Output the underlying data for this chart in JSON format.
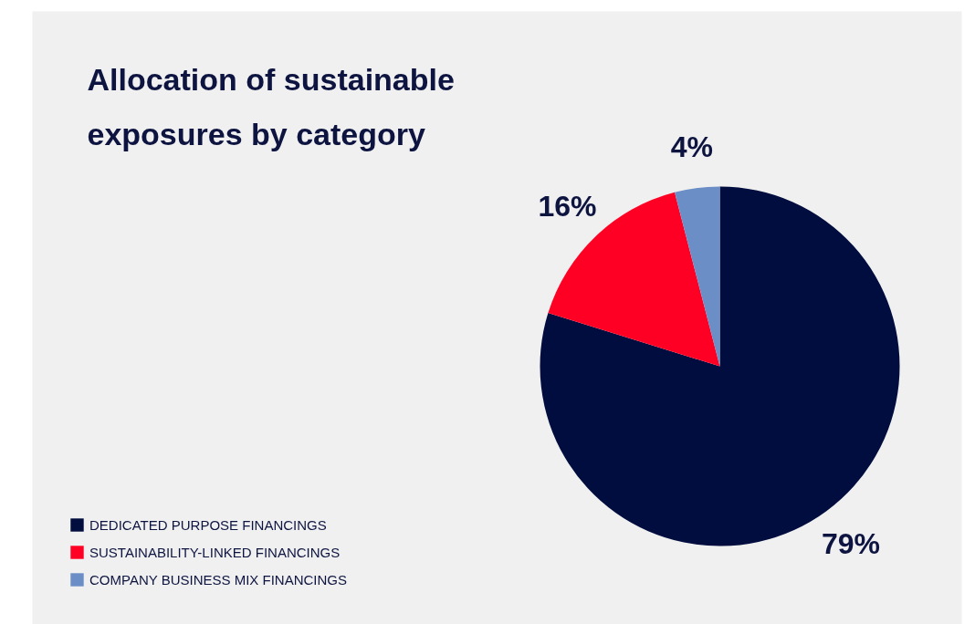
{
  "chart_data": {
    "type": "pie",
    "title": "Allocation of sustainable\nexposures by category",
    "categories": [
      "DEDICATED PURPOSE FINANCINGS",
      "SUSTAINABILITY-LINKED FINANCINGS",
      "COMPANY BUSINESS MIX FINANCINGS"
    ],
    "values": [
      79,
      16,
      4
    ],
    "colors": [
      "#000d3e",
      "#ff0025",
      "#6b8ec6"
    ],
    "value_labels": [
      "79%",
      "16%",
      "4%"
    ],
    "legend": "bottom left"
  }
}
